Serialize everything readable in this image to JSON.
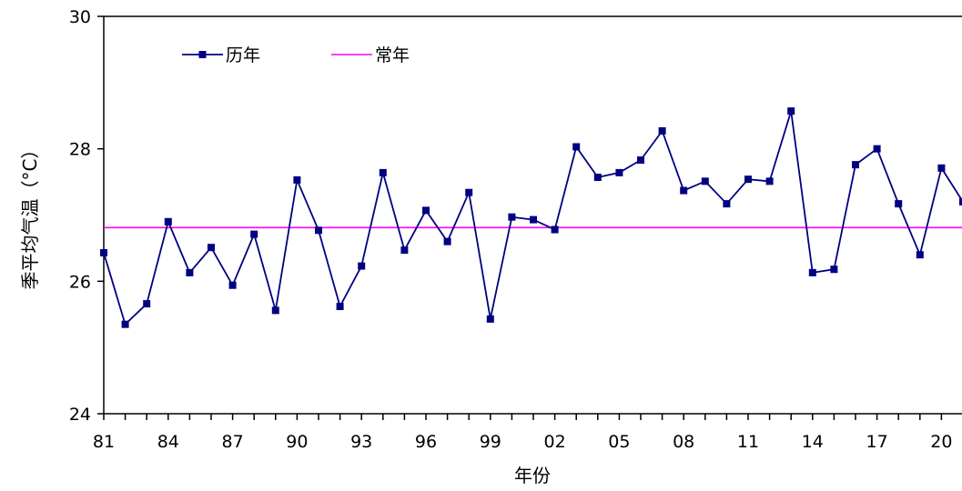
{
  "chart_data": {
    "type": "line",
    "xlabel": "年份",
    "ylabel": "季平均气温（°C）",
    "ylim": [
      24,
      30
    ],
    "yticks": [
      24,
      26,
      28,
      30
    ],
    "xtick_labels": [
      "81",
      "84",
      "87",
      "90",
      "93",
      "96",
      "99",
      "02",
      "05",
      "08",
      "11",
      "14",
      "17",
      "20"
    ],
    "x": [
      1981,
      1982,
      1983,
      1984,
      1985,
      1986,
      1987,
      1988,
      1989,
      1990,
      1991,
      1992,
      1993,
      1994,
      1995,
      1996,
      1997,
      1998,
      1999,
      2000,
      2001,
      2002,
      2003,
      2004,
      2005,
      2006,
      2007,
      2008,
      2009,
      2010,
      2011,
      2012,
      2013,
      2014,
      2015,
      2016,
      2017,
      2018,
      2019,
      2020,
      2021
    ],
    "series": [
      {
        "name": "历年",
        "color": "#000080",
        "marker": "square",
        "values": [
          26.43,
          25.35,
          25.66,
          26.9,
          26.13,
          26.51,
          25.94,
          26.71,
          25.56,
          27.53,
          26.77,
          25.62,
          26.23,
          27.64,
          26.47,
          27.07,
          26.6,
          27.34,
          25.43,
          26.97,
          26.93,
          26.78,
          28.03,
          27.57,
          27.64,
          27.83,
          28.27,
          27.37,
          27.51,
          27.17,
          27.54,
          27.51,
          28.57,
          26.13,
          26.18,
          27.76,
          28.0,
          27.17,
          26.4,
          27.71,
          27.2
        ]
      },
      {
        "name": "常年",
        "color": "#ff00ff",
        "value": 26.81
      }
    ],
    "legend_position": "top-left",
    "grid": false
  }
}
